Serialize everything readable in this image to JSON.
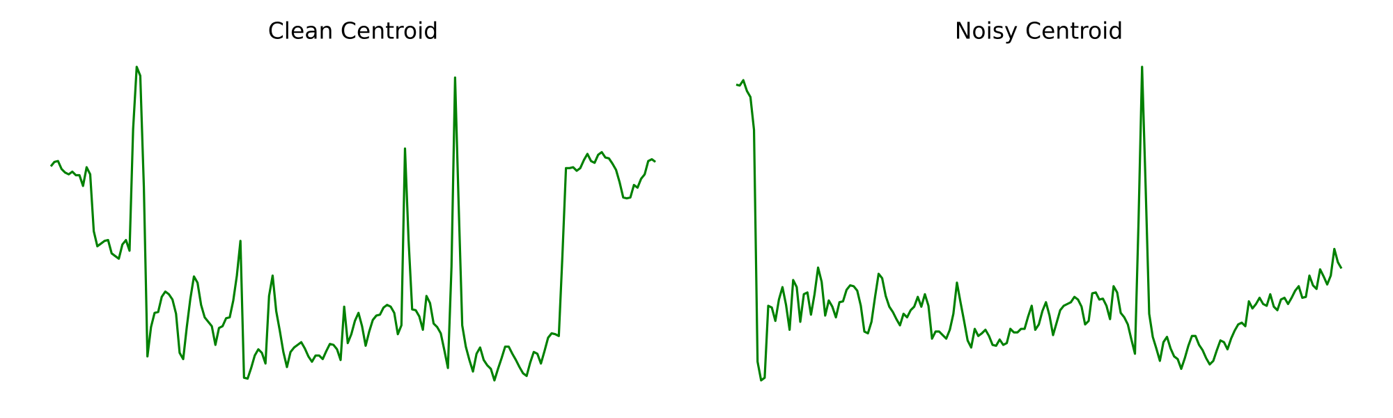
{
  "chart_data": [
    {
      "type": "line",
      "title": "Clean Centroid",
      "color": "#008000",
      "ylim": [
        0,
        353
      ],
      "values": [
        241,
        246,
        247,
        238,
        234,
        232,
        235,
        231,
        231,
        219,
        240,
        232,
        168,
        151,
        154,
        157,
        158,
        143,
        140,
        137,
        153,
        158,
        146,
        283,
        353,
        343,
        218,
        27,
        60,
        76,
        77,
        94,
        100,
        97,
        91,
        75,
        31,
        24,
        60,
        92,
        117,
        110,
        85,
        71,
        66,
        61,
        40,
        59,
        61,
        70,
        71,
        90,
        118,
        157,
        3,
        2,
        14,
        28,
        35,
        31,
        19,
        95,
        118,
        78,
        56,
        32,
        15,
        32,
        37,
        40,
        43,
        36,
        27,
        21,
        28,
        28,
        24,
        33,
        41,
        40,
        35,
        23,
        83,
        42,
        52,
        67,
        76,
        61,
        39,
        55,
        68,
        73,
        74,
        82,
        85,
        83,
        76,
        52,
        62,
        261,
        158,
        80,
        79,
        72,
        57,
        95,
        87,
        64,
        60,
        53,
        34,
        14,
        128,
        341,
        198,
        62,
        38,
        23,
        10,
        30,
        37,
        23,
        17,
        13,
        0,
        13,
        25,
        38,
        38,
        30,
        23,
        15,
        8,
        5,
        20,
        32,
        30,
        19,
        33,
        48,
        53,
        52,
        50,
        140,
        239,
        239,
        240,
        236,
        239,
        248,
        255,
        247,
        245,
        254,
        257,
        251,
        250,
        244,
        237,
        223,
        206,
        205,
        206,
        220,
        217,
        227,
        232,
        247,
        249,
        246
      ]
    },
    {
      "type": "line",
      "title": "Noisy Centroid",
      "color": "#008000",
      "ylim": [
        0,
        353
      ],
      "values": [
        333,
        332,
        338,
        326,
        319,
        282,
        21,
        0,
        3,
        84,
        82,
        67,
        91,
        105,
        85,
        57,
        113,
        105,
        66,
        97,
        99,
        74,
        97,
        127,
        111,
        73,
        90,
        83,
        71,
        88,
        89,
        102,
        107,
        106,
        101,
        84,
        55,
        53,
        66,
        94,
        120,
        115,
        95,
        83,
        77,
        69,
        62,
        75,
        71,
        79,
        83,
        94,
        83,
        97,
        84,
        47,
        55,
        55,
        51,
        47,
        57,
        75,
        110,
        88,
        67,
        45,
        37,
        58,
        50,
        53,
        57,
        50,
        40,
        39,
        46,
        40,
        42,
        58,
        54,
        54,
        58,
        58,
        72,
        84,
        57,
        63,
        78,
        88,
        73,
        51,
        65,
        79,
        84,
        86,
        88,
        94,
        91,
        83,
        63,
        67,
        98,
        99,
        91,
        92,
        84,
        69,
        106,
        99,
        76,
        71,
        63,
        46,
        30,
        178,
        353,
        218,
        75,
        49,
        36,
        22,
        43,
        49,
        36,
        27,
        24,
        13,
        25,
        39,
        50,
        50,
        40,
        34,
        25,
        18,
        22,
        34,
        45,
        43,
        35,
        47,
        56,
        63,
        65,
        61,
        89,
        81,
        86,
        93,
        86,
        84,
        97,
        83,
        79,
        91,
        93,
        86,
        93,
        101,
        106,
        93,
        94,
        118,
        107,
        103,
        125,
        117,
        108,
        118,
        148,
        133,
        126
      ]
    }
  ]
}
